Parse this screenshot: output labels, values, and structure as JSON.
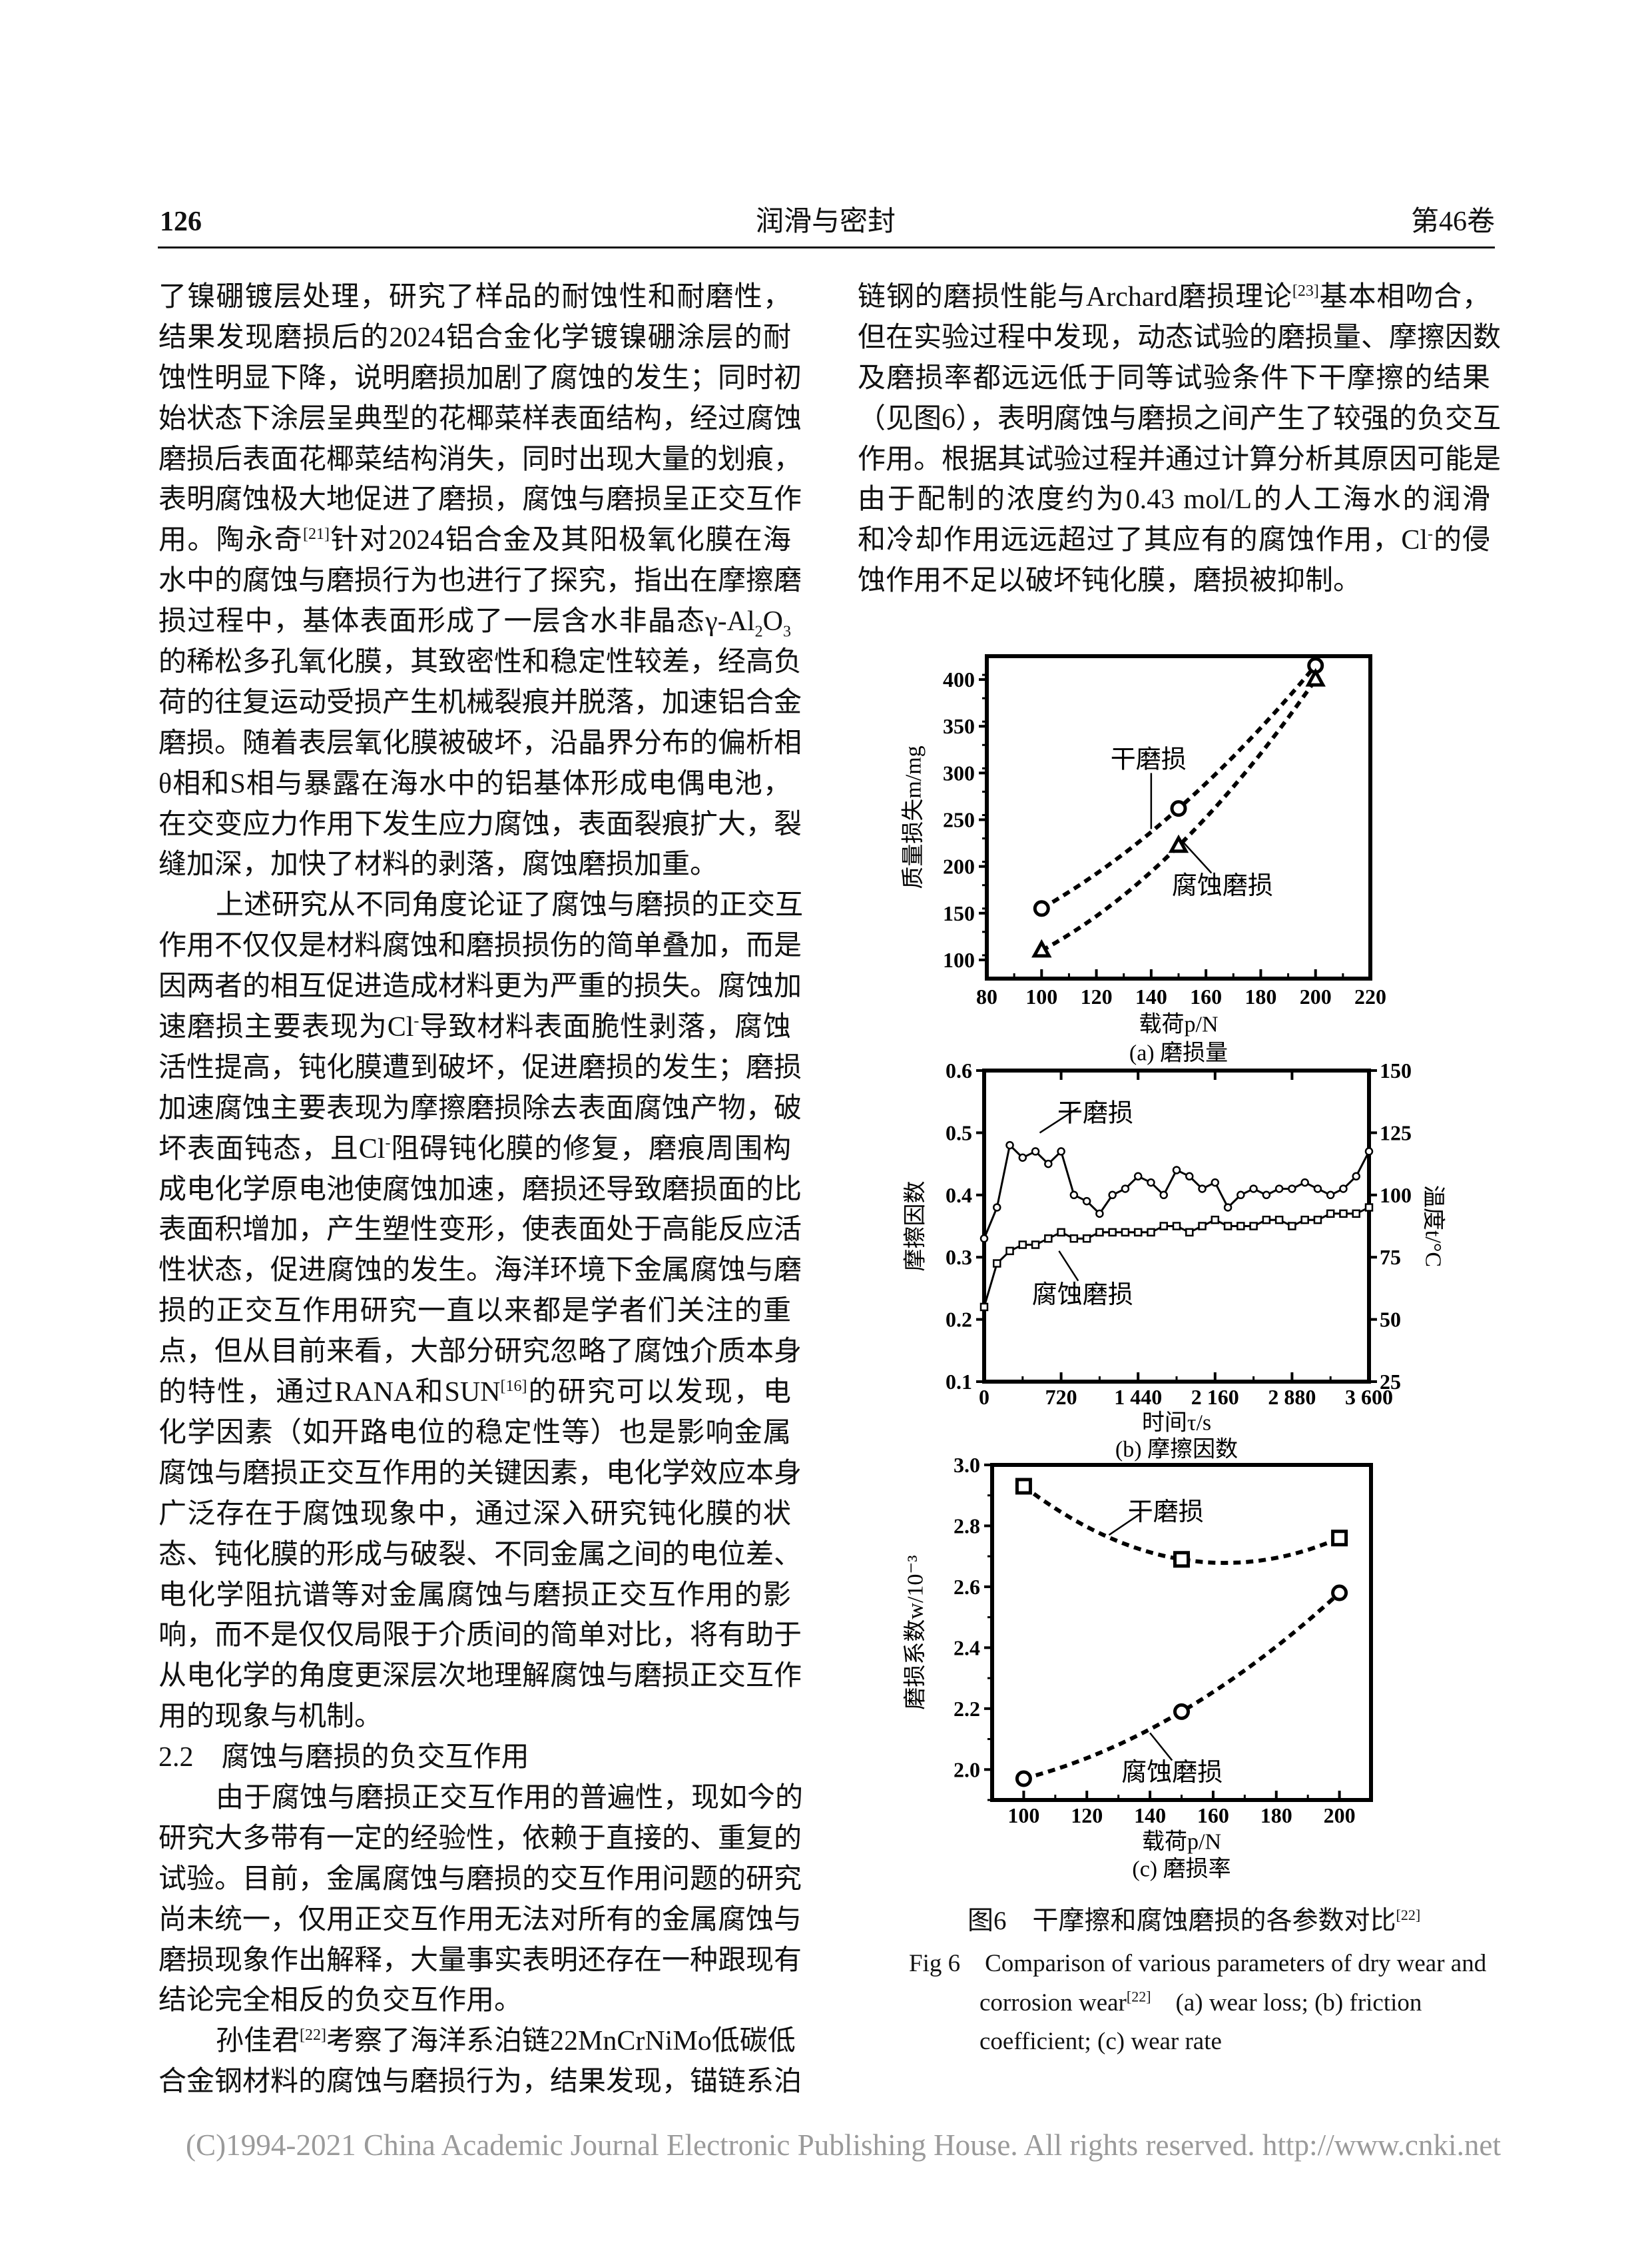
{
  "header": {
    "page_number": "126",
    "journal": "润滑与密封",
    "volume": "第46卷"
  },
  "left_column": [
    "了镍硼镀层处理，研究了样品的耐蚀性和耐磨性，",
    "结果发现磨损后的2024铝合金化学镀镍硼涂层的耐",
    "蚀性明显下降，说明磨损加剧了腐蚀的发生；同时初",
    "始状态下涂层呈典型的花椰菜样表面结构，经过腐蚀",
    "磨损后表面花椰菜结构消失，同时出现大量的划痕，",
    "表明腐蚀极大地促进了磨损，腐蚀与磨损呈正交互作",
    "用。陶永奇^{[21]}针对2024铝合金及其阳极氧化膜在海",
    "水中的腐蚀与磨损行为也进行了探究，指出在摩擦磨",
    "损过程中，基体表面形成了一层含水非晶态γ-Al_{2}O_{3}",
    "的稀松多孔氧化膜，其致密性和稳定性较差，经高负",
    "荷的往复运动受损产生机械裂痕并脱落，加速铝合金",
    "磨损。随着表层氧化膜被破坏，沿晶界分布的偏析相",
    "θ相和S相与暴露在海水中的铝基体形成电偶电池，",
    "在交变应力作用下发生应力腐蚀，表面裂痕扩大，裂",
    "缝加深，加快了材料的剥落，腐蚀磨损加重。",
    "　　上述研究从不同角度论证了腐蚀与磨损的正交互",
    "作用不仅仅是材料腐蚀和磨损损伤的简单叠加，而是",
    "因两者的相互促进造成材料更为严重的损失。腐蚀加",
    "速磨损主要表现为Cl^{-}导致材料表面脆性剥落，腐蚀",
    "活性提高，钝化膜遭到破坏，促进磨损的发生；磨损",
    "加速腐蚀主要表现为摩擦磨损除去表面腐蚀产物，破",
    "坏表面钝态，且Cl^{-}阻碍钝化膜的修复，磨痕周围构",
    "成电化学原电池使腐蚀加速，磨损还导致磨损面的比",
    "表面积增加，产生塑性变形，使表面处于高能反应活",
    "性状态，促进腐蚀的发生。海洋环境下金属腐蚀与磨",
    "损的正交互作用研究一直以来都是学者们关注的重",
    "点，但从目前来看，大部分研究忽略了腐蚀介质本身",
    "的特性，通过RANA和SUN^{[16]}的研究可以发现，电",
    "化学因素（如开路电位的稳定性等）也是影响金属",
    "腐蚀与磨损正交互作用的关键因素，电化学效应本身",
    "广泛存在于腐蚀现象中，通过深入研究钝化膜的状",
    "态、钝化膜的形成与破裂、不同金属之间的电位差、",
    "电化学阻抗谱等对金属腐蚀与磨损正交互作用的影",
    "响，而不是仅仅局限于介质间的简单对比，将有助于",
    "从电化学的角度更深层次地理解腐蚀与磨损正交互作",
    "用的现象与机制。",
    "#2.2　腐蚀与磨损的负交互作用",
    "　　由于腐蚀与磨损正交互作用的普遍性，现如今的",
    "研究大多带有一定的经验性，依赖于直接的、重复的",
    "试验。目前，金属腐蚀与磨损的交互作用问题的研究",
    "尚未统一，仅用正交互作用无法对所有的金属腐蚀与",
    "磨损现象作出解释，大量事实表明还存在一种跟现有",
    "结论完全相反的负交互作用。",
    "　　孙佳君^{[22]}考察了海洋系泊链22MnCrNiMo低碳低",
    "合金钢材料的腐蚀与磨损行为，结果发现，锚链系泊"
  ],
  "right_column": [
    "链钢的磨损性能与Archard磨损理论^{[23]}基本相吻合，",
    "但在实验过程中发现，动态试验的磨损量、摩擦因数",
    "及磨损率都远远低于同等试验条件下干摩擦的结果",
    "（见图6），表明腐蚀与磨损之间产生了较强的负交互",
    "作用。根据其试验过程并通过计算分析其原因可能是",
    "由于配制的浓度约为0.43 mol/L的人工海水的润滑",
    "和冷却作用远远超过了其应有的腐蚀作用，Cl^{-}的侵",
    "蚀作用不足以破坏钝化膜，磨损被抑制。"
  ],
  "figure": {
    "caption_cn": "图6　干摩擦和腐蚀磨损的各参数对比",
    "caption_cn_ref": "[22]",
    "caption_en_1": "Fig 6　Comparison of various parameters of dry wear and",
    "caption_en_2a": "corrosion wear",
    "caption_en_ref": "[22]",
    "caption_en_2b": "　(a) wear loss; (b) friction",
    "caption_en_3": "coefficient; (c) wear rate"
  },
  "chart_data": [
    {
      "type": "line",
      "subtitle": "(a) 磨损量",
      "xlabel": "载荷p/N",
      "ylabel": "质量损失m/mg",
      "xlim": [
        80,
        220
      ],
      "ylim": [
        80,
        425
      ],
      "xticks": [
        "80",
        "100",
        "120",
        "140",
        "160",
        "180",
        "200",
        "220"
      ],
      "yticks": [
        "100",
        "150",
        "200",
        "250",
        "300",
        "350",
        "400"
      ],
      "x": [
        100,
        150,
        200
      ],
      "series": [
        {
          "name": "干磨损",
          "values": [
            155,
            262,
            415
          ],
          "marker": "circle"
        },
        {
          "name": "腐蚀磨损",
          "values": [
            110,
            222,
            400
          ],
          "marker": "triangle"
        }
      ],
      "line_style": "dashed"
    },
    {
      "type": "line",
      "subtitle": "(b) 摩擦因数",
      "xlabel": "时间τ/s",
      "ylabel": "摩擦因数",
      "ylabel_right": "温度t/°C",
      "xlim": [
        0,
        3600
      ],
      "ylim": [
        0.1,
        0.6
      ],
      "ylim_right": [
        25,
        150
      ],
      "xticks": [
        "0",
        "720",
        "1 440",
        "2 160",
        "2 880",
        "3 600"
      ],
      "yticks": [
        "0.1",
        "0.2",
        "0.3",
        "0.4",
        "0.5",
        "0.6"
      ],
      "yticks_right": [
        "25",
        "50",
        "75",
        "100",
        "125",
        "150"
      ],
      "x": [
        0,
        120,
        240,
        360,
        480,
        600,
        720,
        840,
        960,
        1080,
        1200,
        1320,
        1440,
        1560,
        1680,
        1800,
        1920,
        2040,
        2160,
        2280,
        2400,
        2520,
        2640,
        2760,
        2880,
        3000,
        3120,
        3240,
        3360,
        3480,
        3600
      ],
      "series": [
        {
          "name": "干磨损",
          "marker": "circle",
          "values": [
            0.33,
            0.38,
            0.48,
            0.46,
            0.47,
            0.45,
            0.47,
            0.4,
            0.39,
            0.37,
            0.4,
            0.41,
            0.43,
            0.42,
            0.4,
            0.44,
            0.43,
            0.41,
            0.42,
            0.38,
            0.4,
            0.41,
            0.4,
            0.41,
            0.41,
            0.42,
            0.41,
            0.4,
            0.41,
            0.43,
            0.47
          ]
        },
        {
          "name": "腐蚀磨损",
          "marker": "square",
          "values": [
            0.22,
            0.29,
            0.31,
            0.32,
            0.32,
            0.33,
            0.34,
            0.33,
            0.33,
            0.34,
            0.34,
            0.34,
            0.34,
            0.34,
            0.35,
            0.35,
            0.34,
            0.35,
            0.36,
            0.35,
            0.35,
            0.35,
            0.36,
            0.36,
            0.35,
            0.36,
            0.36,
            0.37,
            0.37,
            0.37,
            0.38
          ]
        }
      ]
    },
    {
      "type": "line",
      "subtitle": "(c) 磨损率",
      "xlabel": "载荷p/N",
      "ylabel": "磨损系数w/10⁻³",
      "xlim": [
        90,
        210
      ],
      "ylim": [
        1.9,
        3.0
      ],
      "xticks": [
        "100",
        "120",
        "140",
        "160",
        "180",
        "200"
      ],
      "yticks": [
        "2.0",
        "2.2",
        "2.4",
        "2.6",
        "2.8",
        "3.0"
      ],
      "x": [
        100,
        150,
        200
      ],
      "series": [
        {
          "name": "干磨损",
          "values": [
            2.93,
            2.69,
            2.76
          ],
          "marker": "square"
        },
        {
          "name": "腐蚀磨损",
          "values": [
            1.97,
            2.19,
            2.58
          ],
          "marker": "circle"
        }
      ],
      "line_style": "dashed"
    }
  ],
  "watermark": "(C)1994-2021 China Academic Journal Electronic Publishing House. All rights reserved.    http://www.cnki.net"
}
